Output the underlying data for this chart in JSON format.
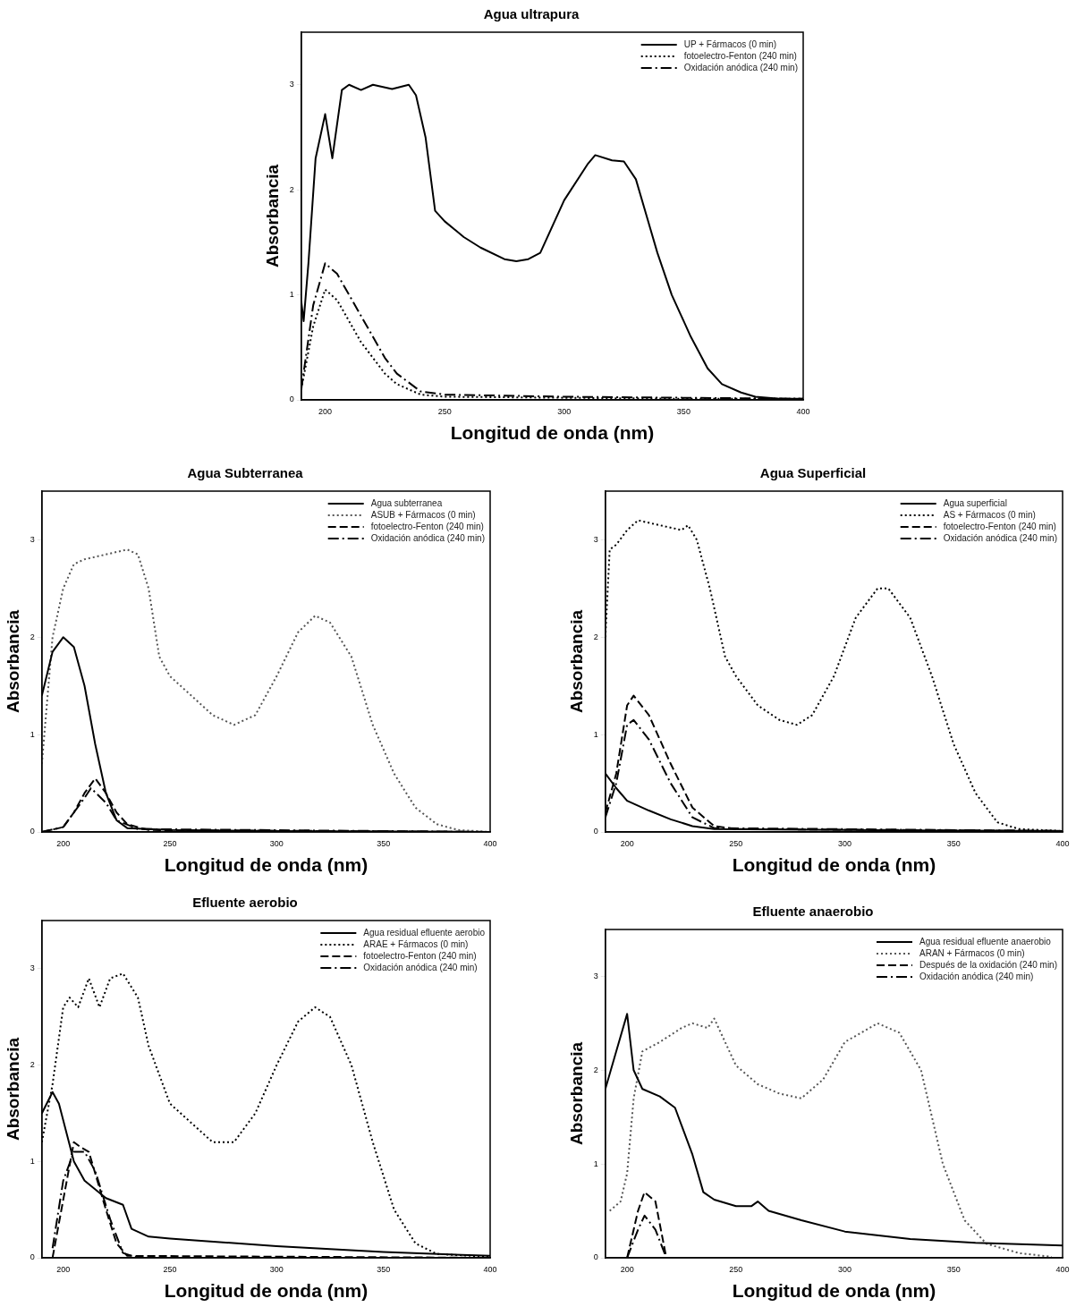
{
  "chart_data": [
    {
      "type": "line",
      "title": "Agua ultrapura",
      "xlabel": "Longitud de onda (nm)",
      "ylabel": "Absorbancia",
      "xlim": [
        190,
        400
      ],
      "xticks": [
        200,
        250,
        300,
        350,
        400
      ],
      "ylim": [
        0,
        3.5
      ],
      "yticks": [
        0,
        1,
        2,
        3
      ],
      "legend": "top right",
      "series": [
        {
          "name": "UP + Fármacos (0 min)",
          "color": "#000000",
          "line_style": "solid",
          "x": [
            190,
            191,
            193,
            196,
            200,
            203,
            207,
            210,
            215,
            220,
            228,
            235,
            238,
            242,
            246,
            250,
            258,
            265,
            275,
            280,
            285,
            290,
            300,
            310,
            313,
            320,
            325,
            330,
            339,
            345,
            353,
            360,
            366,
            374,
            380,
            390,
            400
          ],
          "values": [
            0.94,
            0.75,
            1.3,
            2.3,
            2.72,
            2.3,
            2.95,
            3.0,
            2.95,
            3.0,
            2.96,
            3.0,
            2.9,
            2.5,
            1.8,
            1.7,
            1.55,
            1.45,
            1.34,
            1.32,
            1.34,
            1.4,
            1.9,
            2.25,
            2.33,
            2.28,
            2.27,
            2.1,
            1.4,
            1.0,
            0.6,
            0.3,
            0.15,
            0.07,
            0.03,
            0.01,
            0.01
          ]
        },
        {
          "name": "fotoelectro-Fenton (240 min)",
          "color": "#000000",
          "line_style": "dotted",
          "x": [
            190,
            195,
            200,
            205,
            210,
            215,
            220,
            225,
            230,
            240,
            250,
            300,
            350,
            400
          ],
          "values": [
            0.1,
            0.7,
            1.05,
            0.95,
            0.75,
            0.55,
            0.4,
            0.25,
            0.15,
            0.05,
            0.03,
            0.02,
            0.01,
            0.01
          ]
        },
        {
          "name": "Oxidación anódica (240 min)",
          "color": "#000000",
          "line_style": "dashdot",
          "x": [
            190,
            195,
            200,
            205,
            210,
            215,
            220,
            225,
            230,
            240,
            250,
            300,
            350,
            400
          ],
          "values": [
            0.1,
            0.9,
            1.3,
            1.2,
            1.0,
            0.8,
            0.6,
            0.4,
            0.25,
            0.08,
            0.05,
            0.03,
            0.02,
            0.01
          ]
        }
      ]
    },
    {
      "type": "line",
      "title": "Agua Subterranea",
      "xlabel": "Longitud de onda (nm)",
      "ylabel": "Absorbancia",
      "xlim": [
        190,
        400
      ],
      "xticks": [
        200,
        250,
        300,
        350,
        400
      ],
      "ylim": [
        0,
        3.5
      ],
      "yticks": [
        0,
        1,
        2,
        3
      ],
      "legend": "top right",
      "series": [
        {
          "name": "Agua subterranea",
          "color": "#000000",
          "line_style": "solid",
          "x": [
            190,
            195,
            200,
            205,
            210,
            215,
            220,
            225,
            230,
            250,
            300,
            400
          ],
          "values": [
            1.4,
            1.85,
            2.0,
            1.9,
            1.5,
            0.9,
            0.4,
            0.12,
            0.04,
            0.02,
            0.01,
            0.0
          ]
        },
        {
          "name": "ASUB + Fármacos (0 min)",
          "color": "#555555",
          "line_style": "dotted",
          "x": [
            190,
            195,
            200,
            205,
            210,
            220,
            230,
            235,
            240,
            245,
            250,
            260,
            270,
            280,
            290,
            300,
            310,
            318,
            325,
            335,
            345,
            355,
            365,
            375,
            385,
            400
          ],
          "values": [
            0.7,
            2.0,
            2.5,
            2.75,
            2.8,
            2.85,
            2.9,
            2.85,
            2.5,
            1.8,
            1.6,
            1.4,
            1.2,
            1.1,
            1.2,
            1.6,
            2.05,
            2.22,
            2.15,
            1.8,
            1.1,
            0.6,
            0.25,
            0.08,
            0.02,
            0.0
          ]
        },
        {
          "name": "fotoelectro-Fenton (240 min)",
          "color": "#000000",
          "line_style": "dashed",
          "x": [
            190,
            200,
            205,
            210,
            215,
            220,
            225,
            230,
            240,
            400
          ],
          "values": [
            0.0,
            0.05,
            0.2,
            0.4,
            0.55,
            0.4,
            0.2,
            0.08,
            0.02,
            0.0
          ]
        },
        {
          "name": "Oxidación anódica (240 min)",
          "color": "#000000",
          "line_style": "dashdot",
          "x": [
            190,
            200,
            205,
            210,
            213,
            220,
            225,
            235,
            400
          ],
          "values": [
            0.0,
            0.05,
            0.2,
            0.35,
            0.45,
            0.3,
            0.12,
            0.03,
            0.0
          ]
        }
      ]
    },
    {
      "type": "line",
      "title": "Agua Superficial",
      "xlabel": "Longitud de onda (nm)",
      "ylabel": "Absorbancia",
      "xlim": [
        190,
        400
      ],
      "xticks": [
        200,
        250,
        300,
        350,
        400
      ],
      "ylim": [
        0,
        3.5
      ],
      "yticks": [
        0,
        1,
        2,
        3
      ],
      "legend": "top right",
      "series": [
        {
          "name": "Agua superficial",
          "color": "#000000",
          "line_style": "solid",
          "x": [
            190,
            195,
            200,
            210,
            220,
            230,
            240,
            300,
            400
          ],
          "values": [
            0.6,
            0.45,
            0.32,
            0.22,
            0.13,
            0.06,
            0.03,
            0.02,
            0.01
          ]
        },
        {
          "name": "AS + Fármacos (0 min)",
          "color": "#000000",
          "line_style": "dotted",
          "x": [
            190,
            192,
            195,
            200,
            205,
            215,
            225,
            228,
            232,
            238,
            245,
            250,
            260,
            270,
            278,
            285,
            295,
            305,
            315,
            320,
            330,
            340,
            350,
            360,
            370,
            380,
            400
          ],
          "values": [
            2.0,
            2.9,
            2.95,
            3.1,
            3.2,
            3.15,
            3.1,
            3.15,
            3.0,
            2.5,
            1.8,
            1.6,
            1.3,
            1.15,
            1.1,
            1.2,
            1.6,
            2.2,
            2.5,
            2.5,
            2.2,
            1.6,
            0.9,
            0.4,
            0.1,
            0.03,
            0.01
          ]
        },
        {
          "name": "fotoelectro-Fenton (240 min)",
          "color": "#000000",
          "line_style": "dashed",
          "x": [
            190,
            195,
            200,
            203,
            210,
            220,
            230,
            240,
            250,
            400
          ],
          "values": [
            0.2,
            0.6,
            1.3,
            1.4,
            1.2,
            0.7,
            0.25,
            0.06,
            0.03,
            0.01
          ]
        },
        {
          "name": "Oxidación anódica (240 min)",
          "color": "#000000",
          "line_style": "dashdot",
          "x": [
            190,
            195,
            200,
            203,
            210,
            220,
            230,
            240,
            400
          ],
          "values": [
            0.15,
            0.5,
            1.1,
            1.15,
            0.95,
            0.5,
            0.15,
            0.04,
            0.01
          ]
        }
      ]
    },
    {
      "type": "line",
      "title": "Efluente aerobio",
      "xlabel": "Longitud de onda (nm)",
      "ylabel": "Absorbancia",
      "xlim": [
        190,
        400
      ],
      "xticks": [
        200,
        250,
        300,
        350,
        400
      ],
      "ylim": [
        0,
        3.5
      ],
      "yticks": [
        0,
        1,
        2,
        3
      ],
      "legend": "top right",
      "series": [
        {
          "name": "Agua residual efluente aerobio",
          "color": "#000000",
          "line_style": "solid",
          "x": [
            190,
            195,
            198,
            205,
            210,
            220,
            228,
            232,
            240,
            250,
            300,
            350,
            400
          ],
          "values": [
            1.5,
            1.72,
            1.6,
            1.0,
            0.8,
            0.62,
            0.55,
            0.3,
            0.22,
            0.2,
            0.12,
            0.06,
            0.02
          ]
        },
        {
          "name": "ARAE + Fármacos (0 min)",
          "color": "#000000",
          "line_style": "dotted",
          "x": [
            190,
            195,
            200,
            203,
            207,
            212,
            217,
            222,
            228,
            235,
            240,
            250,
            260,
            270,
            280,
            290,
            300,
            310,
            318,
            325,
            335,
            345,
            355,
            365,
            375,
            400
          ],
          "values": [
            1.2,
            1.8,
            2.6,
            2.7,
            2.6,
            2.9,
            2.6,
            2.9,
            2.95,
            2.7,
            2.2,
            1.6,
            1.4,
            1.2,
            1.2,
            1.5,
            2.0,
            2.45,
            2.6,
            2.5,
            2.0,
            1.2,
            0.5,
            0.15,
            0.04,
            0.01
          ]
        },
        {
          "name": "fotoelectro-Fenton (240 min)",
          "color": "#000000",
          "line_style": "dashed",
          "x": [
            195,
            200,
            205,
            208,
            212,
            220,
            225,
            230,
            400
          ],
          "values": [
            0.0,
            0.6,
            1.2,
            1.15,
            1.1,
            0.5,
            0.15,
            0.02,
            0.0
          ]
        },
        {
          "name": "Oxidación anódica (240 min)",
          "color": "#000000",
          "line_style": "dashdot",
          "x": [
            195,
            200,
            205,
            210,
            215,
            222,
            228,
            235,
            400
          ],
          "values": [
            0.1,
            0.8,
            1.1,
            1.1,
            0.9,
            0.4,
            0.05,
            0.0,
            0.0
          ]
        }
      ]
    },
    {
      "type": "line",
      "title": "Efluente anaerobio",
      "xlabel": "Longitud de onda (nm)",
      "ylabel": "Absorbancia",
      "xlim": [
        190,
        400
      ],
      "xticks": [
        200,
        250,
        300,
        350,
        400
      ],
      "ylim": [
        0,
        3.5
      ],
      "yticks": [
        0,
        1,
        2,
        3
      ],
      "legend": "top right",
      "series": [
        {
          "name": "Agua residual efluente anaerobio",
          "color": "#000000",
          "line_style": "solid",
          "x": [
            190,
            195,
            200,
            203,
            207,
            215,
            222,
            230,
            235,
            240,
            250,
            257,
            260,
            265,
            280,
            300,
            330,
            360,
            400
          ],
          "values": [
            1.8,
            2.2,
            2.6,
            2.0,
            1.8,
            1.72,
            1.6,
            1.1,
            0.7,
            0.62,
            0.55,
            0.55,
            0.6,
            0.5,
            0.4,
            0.28,
            0.2,
            0.16,
            0.13
          ]
        },
        {
          "name": "ARAN + Fármacos (0 min)",
          "color": "#555555",
          "line_style": "dotted",
          "x": [
            192,
            197,
            200,
            203,
            207,
            215,
            225,
            230,
            237,
            240,
            250,
            260,
            270,
            280,
            290,
            300,
            315,
            325,
            335,
            345,
            355,
            365,
            380,
            395
          ],
          "values": [
            0.5,
            0.6,
            0.9,
            1.7,
            2.2,
            2.3,
            2.45,
            2.5,
            2.45,
            2.55,
            2.05,
            1.85,
            1.75,
            1.7,
            1.9,
            2.3,
            2.5,
            2.4,
            2.0,
            1.0,
            0.4,
            0.15,
            0.05,
            0.01
          ]
        },
        {
          "name": "Después de la oxidación (240 min)",
          "color": "#000000",
          "line_style": "dashed",
          "x": [
            200,
            205,
            208,
            213,
            218,
            400
          ],
          "values": [
            0.0,
            0.5,
            0.7,
            0.6,
            0.0,
            0.0
          ]
        },
        {
          "name": "Oxidación anódica (240 min)",
          "color": "#000000",
          "line_style": "dashdot",
          "x": [
            200,
            205,
            208,
            213,
            218,
            400
          ],
          "values": [
            0.0,
            0.3,
            0.45,
            0.3,
            0.0,
            0.0
          ]
        }
      ]
    }
  ]
}
